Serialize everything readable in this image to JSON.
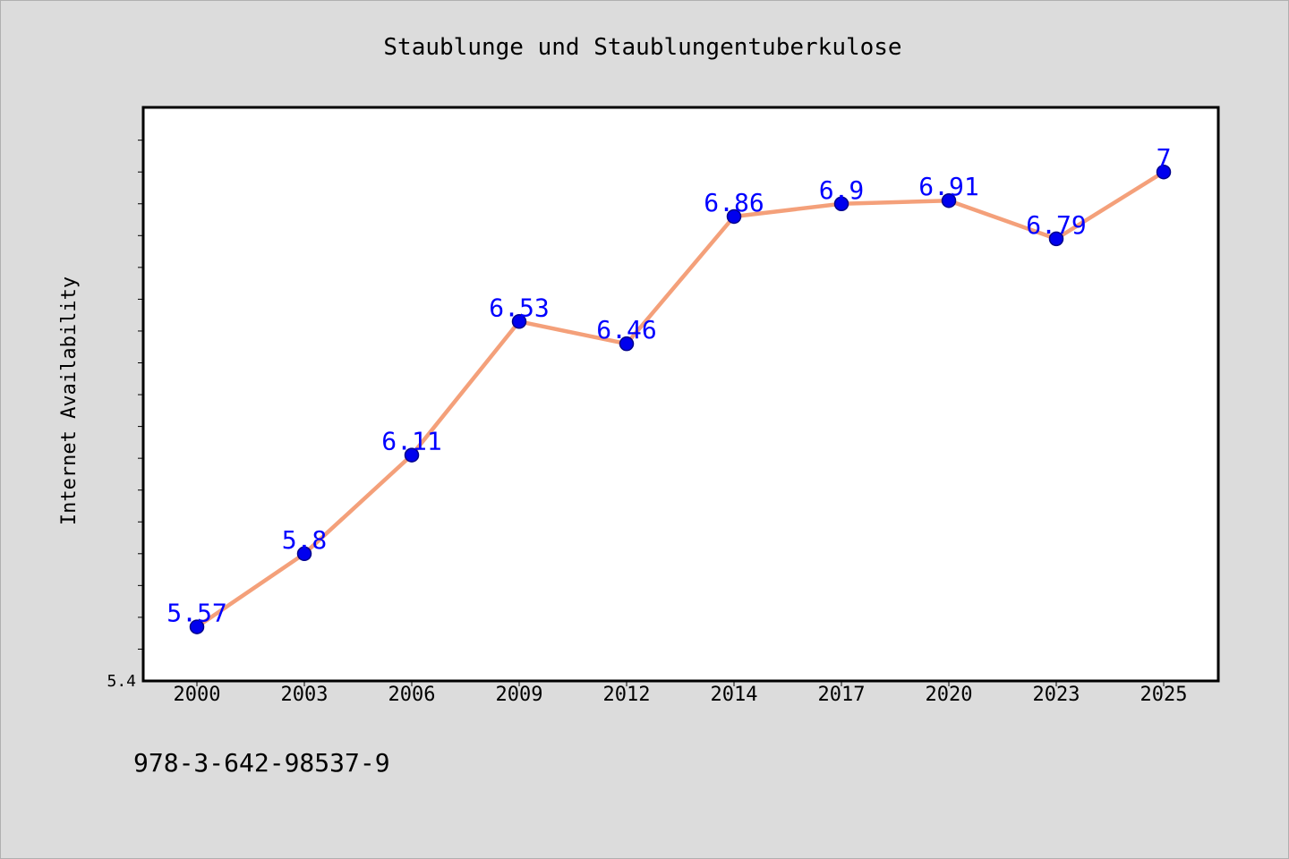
{
  "chart_data": {
    "type": "line",
    "title": "Staublunge und Staublungentuberkulose",
    "xlabel": "",
    "ylabel": "Internet Availability",
    "categories": [
      "2000",
      "2003",
      "2006",
      "2009",
      "2012",
      "2014",
      "2017",
      "2020",
      "2023",
      "2025"
    ],
    "series": [
      {
        "values": [
          5.57,
          5.8,
          6.11,
          6.53,
          6.46,
          6.86,
          6.9,
          6.91,
          6.79,
          7.0
        ],
        "data_labels": [
          "5.57",
          "5.8",
          "6.11",
          "6.53",
          "6.46",
          "6.86",
          "6.9",
          "6.91",
          "6.79",
          "7"
        ]
      }
    ],
    "ylim": [
      5.4,
      7.2
    ],
    "y_tick_label": "5.4",
    "grid": false,
    "legend": "none",
    "colors": {
      "line": "#f4a07a",
      "marker": "#0000ee",
      "marker_edge": "#00008b",
      "data_label": "#0000ff",
      "plot_background": "#ffffff",
      "figure_background": "#dcdcdc",
      "frame": "#000000"
    }
  },
  "footer": {
    "isbn": "978-3-642-98537-9"
  }
}
